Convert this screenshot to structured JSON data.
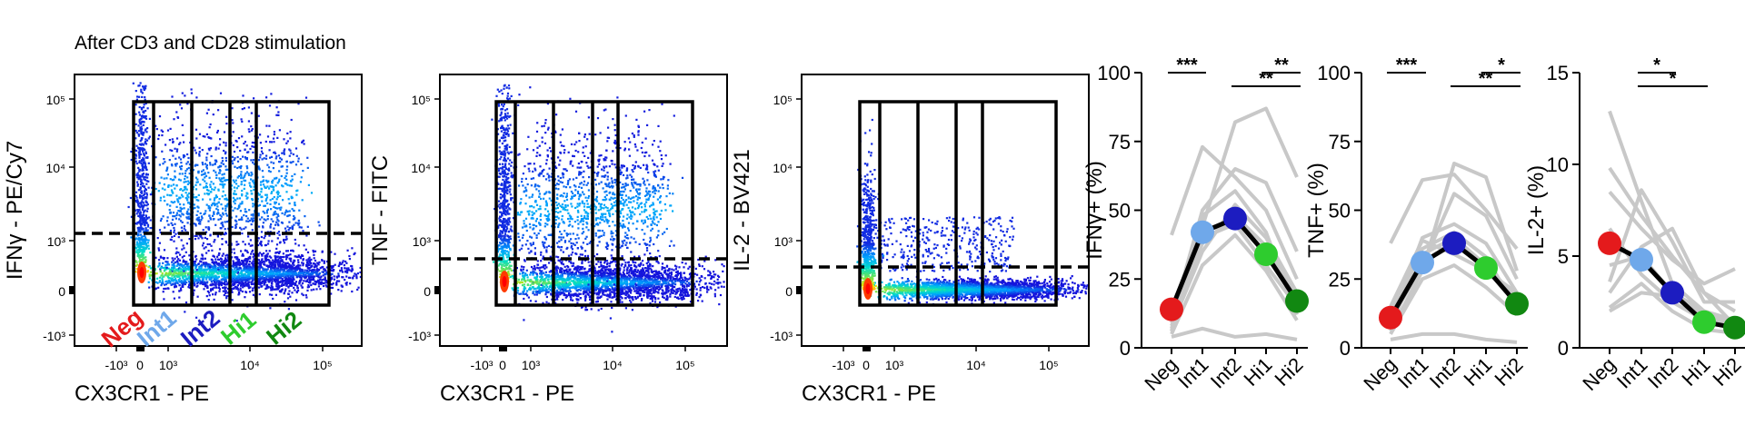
{
  "figure": {
    "title": "After CD3 and CD28 stimulation"
  },
  "chart_data": [
    {
      "type": "scatter",
      "panel": "flow-ifng",
      "xlabel": "CX3CR1 - PE",
      "ylabel": "IFNγ - PE/Cy7",
      "x_ticks": [
        "-10³",
        "0",
        "10³",
        "10⁴",
        "10⁵"
      ],
      "y_ticks": [
        "10⁵",
        "10⁴",
        "10³",
        "0",
        "-10³"
      ],
      "threshold_label": "",
      "gates": [
        "Neg",
        "Int1",
        "Int2",
        "Hi1",
        "Hi2"
      ],
      "gate_colors": [
        "#e41a1c",
        "#6fa8ea",
        "#1c1cc0",
        "#2ecc2e",
        "#118811"
      ]
    },
    {
      "type": "scatter",
      "panel": "flow-tnf",
      "xlabel": "CX3CR1 - PE",
      "ylabel": "TNF - FITC",
      "x_ticks": [
        "-10³",
        "0",
        "10³",
        "10⁴",
        "10⁵"
      ],
      "y_ticks": [
        "10⁵",
        "10⁴",
        "10³",
        "0",
        "-10³"
      ]
    },
    {
      "type": "scatter",
      "panel": "flow-il2",
      "xlabel": "CX3CR1 - PE",
      "ylabel": "IL-2 - BV421",
      "x_ticks": [
        "-10³",
        "0",
        "10³",
        "10⁴",
        "10⁵"
      ],
      "y_ticks": [
        "10⁵",
        "10⁴",
        "10³",
        "0",
        "-10³"
      ]
    },
    {
      "type": "line",
      "panel": "summary-ifng",
      "ylabel": "IFNγ+ (%)",
      "categories": [
        "Neg",
        "Int1",
        "Int2",
        "Hi1",
        "Hi2"
      ],
      "y_ticks": [
        "100",
        "75",
        "50",
        "25",
        "0"
      ],
      "ylim": [
        0,
        100
      ],
      "mean": [
        14,
        42,
        47,
        34,
        17
      ],
      "donors": [
        [
          5,
          30,
          41,
          28,
          10
        ],
        [
          8,
          35,
          52,
          40,
          20
        ],
        [
          41,
          73,
          62,
          50,
          25
        ],
        [
          12,
          44,
          82,
          87,
          62
        ],
        [
          6,
          48,
          57,
          42,
          12
        ],
        [
          4,
          7,
          4,
          5,
          3
        ],
        [
          10,
          50,
          65,
          60,
          35
        ],
        [
          7,
          40,
          45,
          30,
          15
        ],
        [
          9,
          38,
          48,
          37,
          18
        ]
      ],
      "significance": [
        {
          "from": 0,
          "to": 1,
          "label": "***",
          "level": 0
        },
        {
          "from": 2,
          "to": 4,
          "label": "**",
          "level": 1
        },
        {
          "from": 3,
          "to": 4,
          "label": "**",
          "level": 0
        }
      ]
    },
    {
      "type": "line",
      "panel": "summary-tnf",
      "ylabel": "TNF+ (%)",
      "categories": [
        "Neg",
        "Int1",
        "Int2",
        "Hi1",
        "Hi2"
      ],
      "y_ticks": [
        "100",
        "75",
        "50",
        "25",
        "0"
      ],
      "ylim": [
        0,
        100
      ],
      "mean": [
        11,
        31,
        38,
        29,
        16
      ],
      "donors": [
        [
          38,
          61,
          63,
          50,
          36
        ],
        [
          6,
          28,
          67,
          62,
          28
        ],
        [
          9,
          40,
          45,
          38,
          20
        ],
        [
          3,
          5,
          5,
          3,
          2
        ],
        [
          8,
          34,
          40,
          30,
          18
        ],
        [
          10,
          30,
          56,
          48,
          25
        ],
        [
          12,
          36,
          42,
          33,
          14
        ],
        [
          5,
          25,
          30,
          22,
          12
        ],
        [
          15,
          39,
          34,
          28,
          20
        ]
      ],
      "significance": [
        {
          "from": 0,
          "to": 1,
          "label": "***",
          "level": 0
        },
        {
          "from": 2,
          "to": 4,
          "label": "**",
          "level": 1
        },
        {
          "from": 3,
          "to": 4,
          "label": "*",
          "level": 0
        }
      ]
    },
    {
      "type": "line",
      "panel": "summary-il2",
      "ylabel": "IL-2+ (%)",
      "categories": [
        "Neg",
        "Int1",
        "Int2",
        "Hi1",
        "Hi2"
      ],
      "y_ticks": [
        "15",
        "10",
        "5",
        "0"
      ],
      "ylim": [
        0,
        15
      ],
      "mean": [
        5.7,
        4.8,
        3.0,
        1.4,
        1.1
      ],
      "donors": [
        [
          12.9,
          8.0,
          3.5,
          2.0,
          1.5
        ],
        [
          9.8,
          7.2,
          5.0,
          3.0,
          2.0
        ],
        [
          8.5,
          6.5,
          4.8,
          3.5,
          4.3
        ],
        [
          3.6,
          8.6,
          5.8,
          2.5,
          2.5
        ],
        [
          3.0,
          5.5,
          6.5,
          3.0,
          1.2
        ],
        [
          2.2,
          3.5,
          2.0,
          1.0,
          0.8
        ],
        [
          6.5,
          4.0,
          2.5,
          1.5,
          1.0
        ],
        [
          4.5,
          5.0,
          3.0,
          2.0,
          1.2
        ],
        [
          2.0,
          3.0,
          2.8,
          1.8,
          1.0
        ]
      ],
      "significance": [
        {
          "from": 1,
          "to": 2,
          "label": "*",
          "level": 0
        },
        {
          "from": 1,
          "to": 3,
          "label": "*",
          "level": 1
        }
      ]
    }
  ]
}
